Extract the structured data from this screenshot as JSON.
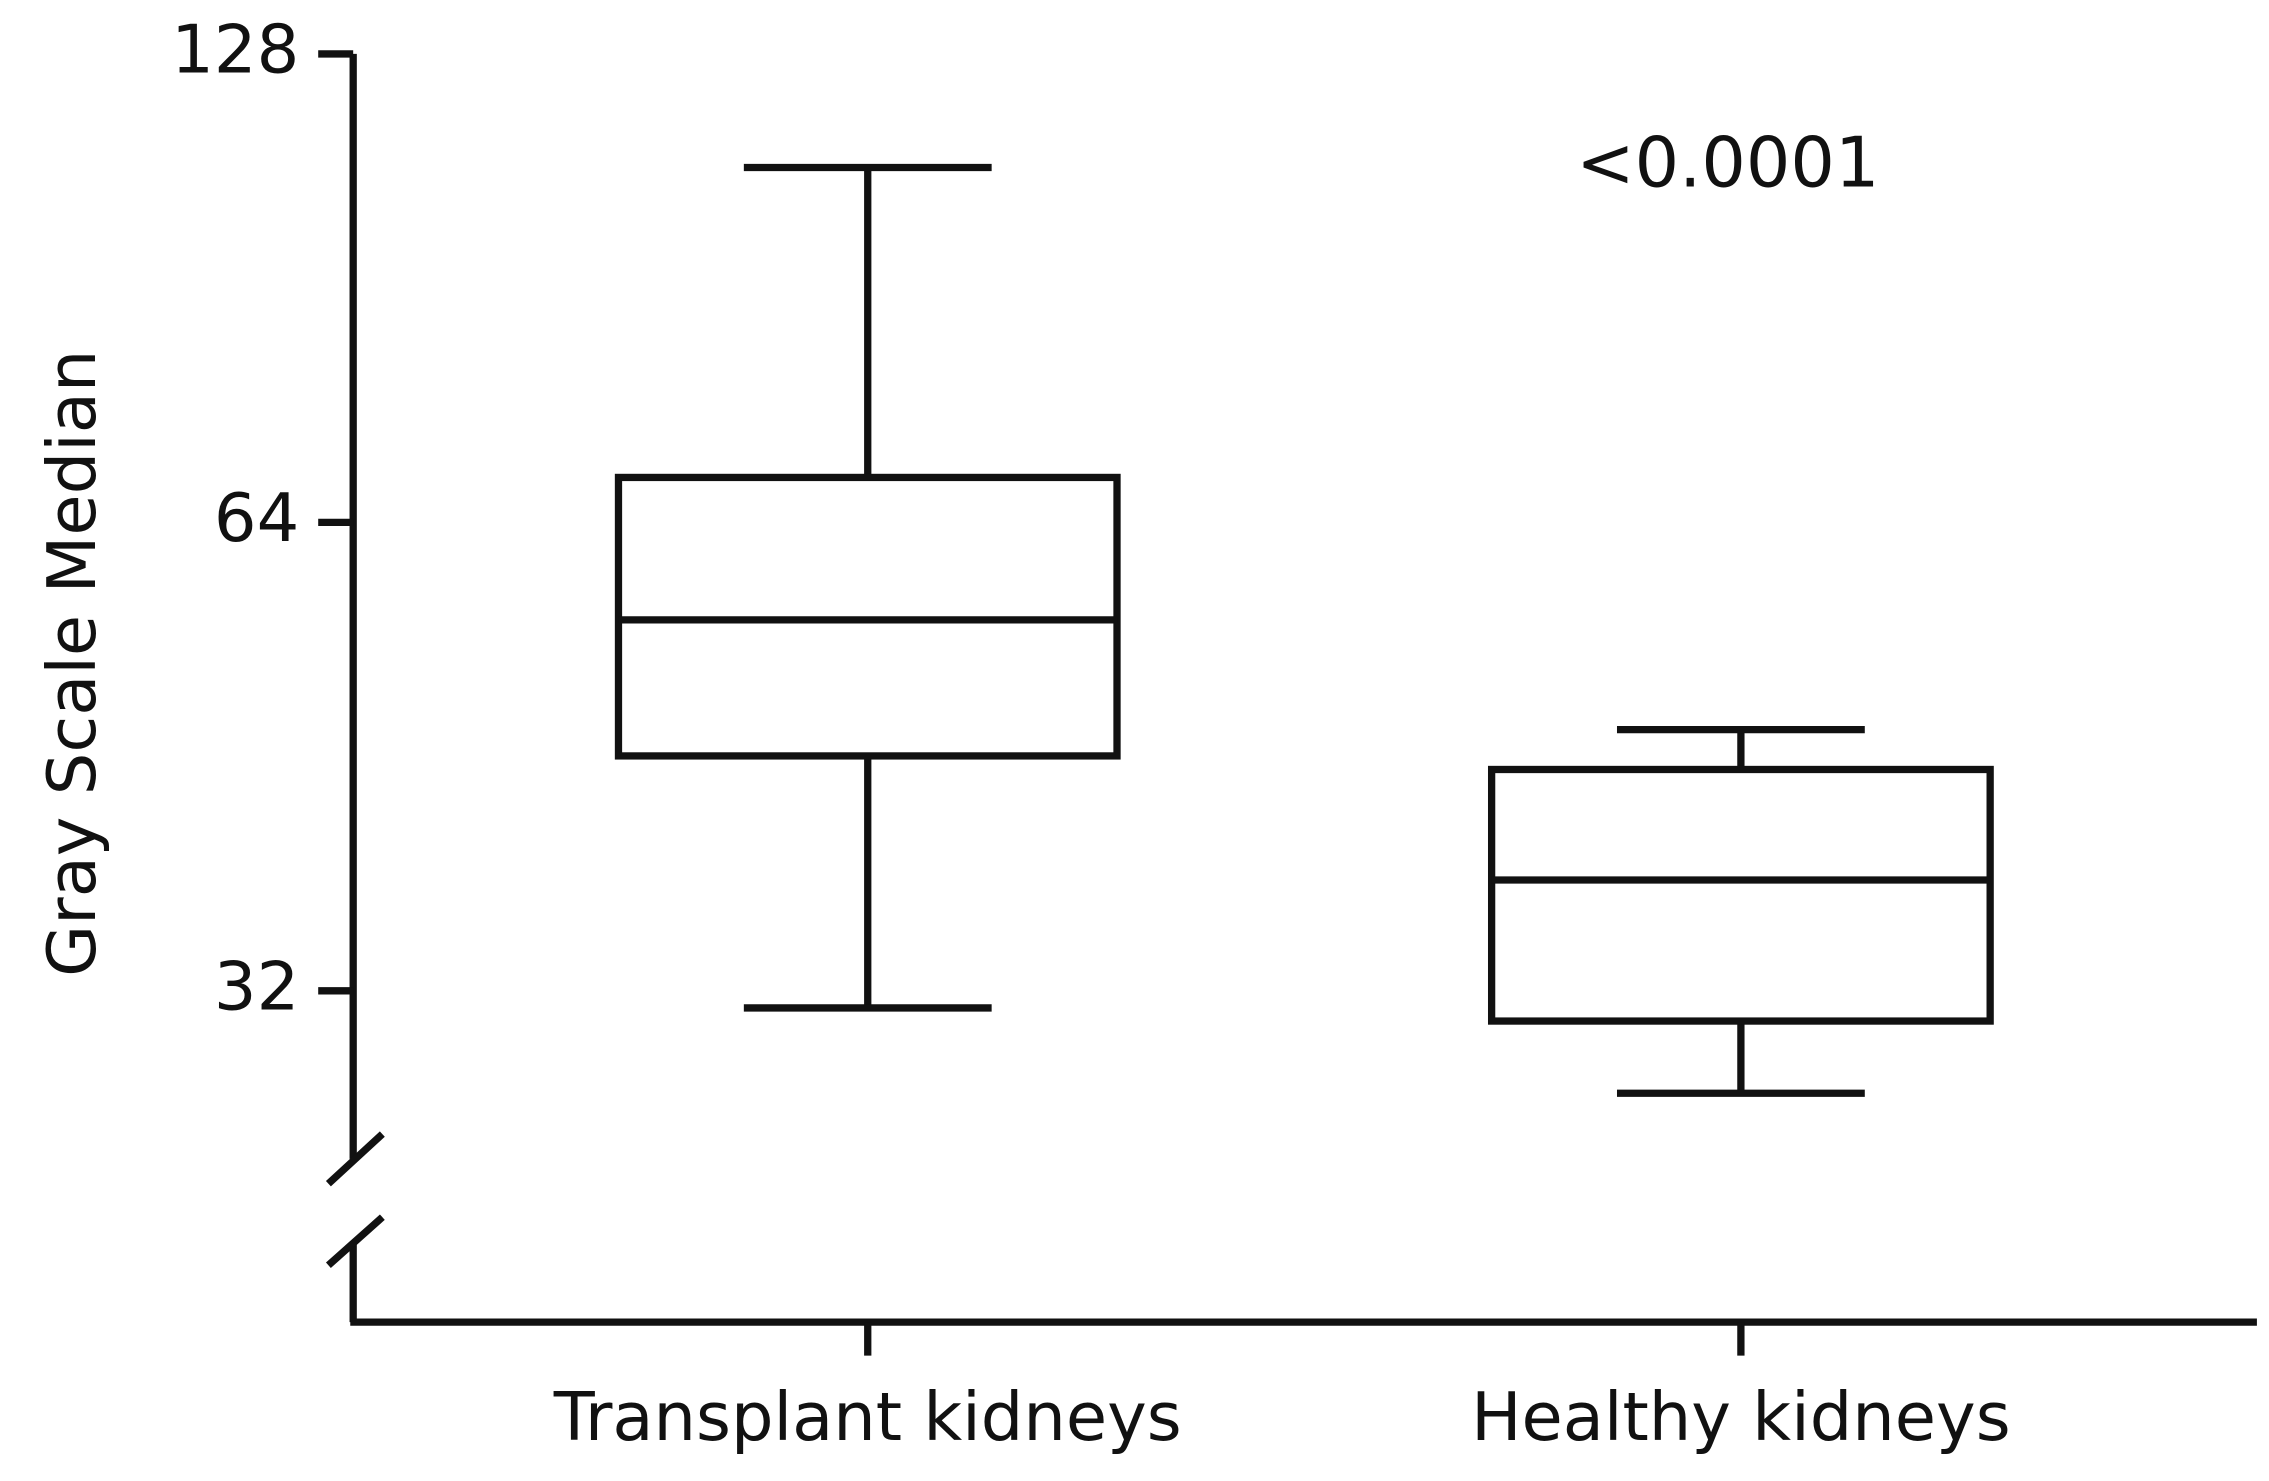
{
  "chart_data": {
    "type": "box",
    "ylabel": "Gray Scale Median",
    "annotation": "<0.0001",
    "categories": [
      "Transplant kidneys",
      "Healthy kidneys"
    ],
    "boxes": [
      {
        "min": 31.2,
        "q1": 45.3,
        "median": 55.4,
        "q3": 68.4,
        "max": 108.2
      },
      {
        "min": 27.5,
        "q1": 30.6,
        "median": 37.7,
        "q3": 44.4,
        "max": 47.1
      }
    ],
    "color": "#111111",
    "yscale": "log",
    "log_base": 2,
    "ylim": [
      19.6,
      128
    ],
    "yticks": [
      32,
      64,
      128
    ],
    "grid": false,
    "axis_break": true
  }
}
